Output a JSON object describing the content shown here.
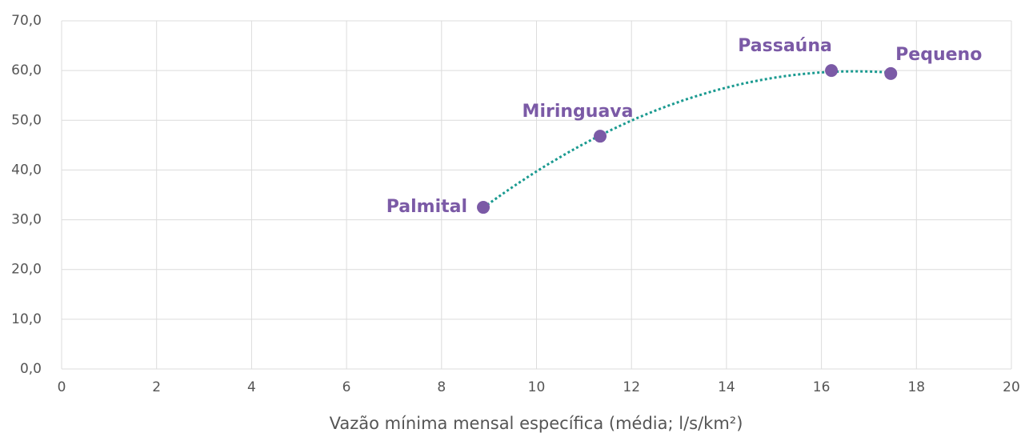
{
  "chart_data": {
    "type": "scatter",
    "x_label": "Vazão mínima mensal específica (média; l/s/km²)",
    "series": [
      {
        "color": "#7b5aa6",
        "x": [
          8.88,
          11.34,
          16.21,
          17.46
        ],
        "values": [
          32.5,
          46.8,
          60.0,
          59.4
        ],
        "labels": [
          "Palmital",
          "Miringuava",
          "Passaúna",
          "Pequeno"
        ]
      }
    ],
    "trendline": {
      "type": "polynomial",
      "order": 2,
      "color": "#1a9a90",
      "style": "dotted"
    },
    "xlim": [
      0,
      20
    ],
    "xticks": [
      0,
      2,
      4,
      6,
      8,
      10,
      12,
      14,
      16,
      18,
      20
    ],
    "ylim": [
      0,
      70
    ],
    "yticks": [
      {
        "value": 0,
        "label": "0,0"
      },
      {
        "value": 10,
        "label": "10,0"
      },
      {
        "value": 20,
        "label": "20,0"
      },
      {
        "value": 30,
        "label": "30,0"
      },
      {
        "value": 40,
        "label": "40,0"
      },
      {
        "value": 50,
        "label": "50,0"
      },
      {
        "value": 60,
        "label": "60,0"
      },
      {
        "value": 70,
        "label": "70,0"
      }
    ],
    "grid": true
  }
}
